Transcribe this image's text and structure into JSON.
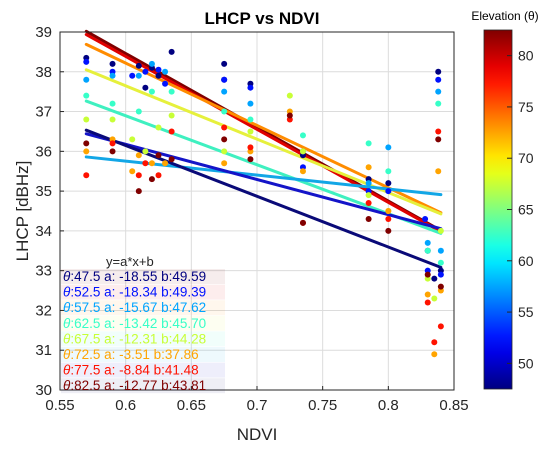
{
  "chart_data": {
    "type": "scatter",
    "title": "LHCP vs NDVI",
    "xlabel": "NDVI",
    "ylabel": "LHCP [dBHz]",
    "xlim": [
      0.55,
      0.85
    ],
    "ylim": [
      30,
      39
    ],
    "xticks": [
      "0.55",
      "0.6",
      "0.65",
      "0.7",
      "0.75",
      "0.8",
      "0.85"
    ],
    "yticks": [
      "30",
      "31",
      "32",
      "33",
      "34",
      "35",
      "36",
      "37",
      "38",
      "39"
    ],
    "grid": true,
    "colorbar": {
      "title": "Elevation (θ)",
      "range": [
        47.5,
        82.5
      ],
      "ticks": [
        "50",
        "55",
        "60",
        "65",
        "70",
        "75",
        "80"
      ],
      "colormap": "jet",
      "placement": "right"
    },
    "equation_label": "y=a*x+b",
    "fits": [
      {
        "theta": "47.5",
        "a": "-18.55",
        "b": "49.59",
        "color": "#800000"
      },
      {
        "theta": "52.5",
        "a": "-18.34",
        "b": "49.39",
        "color": "#e00000"
      },
      {
        "theta": "57.5",
        "a": "-15.67",
        "b": "47.62",
        "color": "#ff8c00"
      },
      {
        "theta": "62.5",
        "a": "-13.42",
        "b": "45.70",
        "color": "#e6f03c"
      },
      {
        "theta": "67.5",
        "a": "-12.31",
        "b": "44.28",
        "color": "#3ff0c0"
      },
      {
        "theta": "72.5",
        "a": "-3.51",
        "b": "37.86",
        "color": "#12a6e6"
      },
      {
        "theta": "77.5",
        "a": "-8.84",
        "b": "41.48",
        "color": "#1414c8"
      },
      {
        "theta": "82.5",
        "a": "-12.77",
        "b": "43.81",
        "color": "#0a0a78"
      }
    ],
    "series": [
      {
        "theta": 47.5,
        "points": [
          [
            0.57,
            38.35
          ],
          [
            0.59,
            38.2
          ],
          [
            0.61,
            38.15
          ],
          [
            0.615,
            37.6
          ],
          [
            0.62,
            38.1
          ],
          [
            0.625,
            37.9
          ],
          [
            0.635,
            38.5
          ],
          [
            0.675,
            38.2
          ],
          [
            0.675,
            37.8
          ],
          [
            0.695,
            37.7
          ],
          [
            0.735,
            35.9
          ],
          [
            0.785,
            35.3
          ],
          [
            0.8,
            35.2
          ],
          [
            0.83,
            33.5
          ],
          [
            0.835,
            32.8
          ],
          [
            0.838,
            38.0
          ],
          [
            0.84,
            33.0
          ]
        ]
      },
      {
        "theta": 52.5,
        "points": [
          [
            0.57,
            38.25
          ],
          [
            0.59,
            38.0
          ],
          [
            0.605,
            37.9
          ],
          [
            0.615,
            38.0
          ],
          [
            0.625,
            38.05
          ],
          [
            0.63,
            37.7
          ],
          [
            0.675,
            37.8
          ],
          [
            0.695,
            37.6
          ],
          [
            0.735,
            35.6
          ],
          [
            0.785,
            35.0
          ],
          [
            0.8,
            35.0
          ],
          [
            0.828,
            34.3
          ],
          [
            0.83,
            33.0
          ],
          [
            0.838,
            37.8
          ],
          [
            0.84,
            32.9
          ]
        ]
      },
      {
        "theta": 57.5,
        "points": [
          [
            0.57,
            37.8
          ],
          [
            0.59,
            37.9
          ],
          [
            0.61,
            37.9
          ],
          [
            0.62,
            38.2
          ],
          [
            0.63,
            38.0
          ],
          [
            0.675,
            37.5
          ],
          [
            0.695,
            37.2
          ],
          [
            0.735,
            36.0
          ],
          [
            0.785,
            35.2
          ],
          [
            0.8,
            36.1
          ],
          [
            0.83,
            33.7
          ],
          [
            0.838,
            37.5
          ],
          [
            0.84,
            33.5
          ]
        ]
      },
      {
        "theta": 62.5,
        "points": [
          [
            0.57,
            37.4
          ],
          [
            0.59,
            37.2
          ],
          [
            0.61,
            37.0
          ],
          [
            0.62,
            37.5
          ],
          [
            0.635,
            37.5
          ],
          [
            0.675,
            37.0
          ],
          [
            0.695,
            36.8
          ],
          [
            0.735,
            36.4
          ],
          [
            0.785,
            36.2
          ],
          [
            0.8,
            35.5
          ],
          [
            0.83,
            33.5
          ],
          [
            0.838,
            37.2
          ],
          [
            0.84,
            33.2
          ]
        ]
      },
      {
        "theta": 67.5,
        "points": [
          [
            0.57,
            36.8
          ],
          [
            0.59,
            36.8
          ],
          [
            0.605,
            36.3
          ],
          [
            0.615,
            36.0
          ],
          [
            0.625,
            36.6
          ],
          [
            0.635,
            36.9
          ],
          [
            0.675,
            36.0
          ],
          [
            0.695,
            36.5
          ],
          [
            0.725,
            37.4
          ],
          [
            0.735,
            36.0
          ],
          [
            0.785,
            34.9
          ],
          [
            0.8,
            34.5
          ],
          [
            0.83,
            32.8
          ],
          [
            0.835,
            32.3
          ],
          [
            0.84,
            34.0
          ]
        ]
      },
      {
        "theta": 72.5,
        "points": [
          [
            0.57,
            36.0
          ],
          [
            0.59,
            36.3
          ],
          [
            0.605,
            35.5
          ],
          [
            0.61,
            35.9
          ],
          [
            0.62,
            35.7
          ],
          [
            0.63,
            35.7
          ],
          [
            0.675,
            35.7
          ],
          [
            0.695,
            36.0
          ],
          [
            0.725,
            37.0
          ],
          [
            0.735,
            35.5
          ],
          [
            0.785,
            35.6
          ],
          [
            0.8,
            34.5
          ],
          [
            0.83,
            32.4
          ],
          [
            0.835,
            30.9
          ],
          [
            0.838,
            35.5
          ],
          [
            0.84,
            32.5
          ]
        ]
      },
      {
        "theta": 77.5,
        "points": [
          [
            0.57,
            35.4
          ],
          [
            0.59,
            36.2
          ],
          [
            0.61,
            35.4
          ],
          [
            0.615,
            35.7
          ],
          [
            0.625,
            35.4
          ],
          [
            0.635,
            36.5
          ],
          [
            0.675,
            36.6
          ],
          [
            0.695,
            36.1
          ],
          [
            0.725,
            36.8
          ],
          [
            0.735,
            34.2
          ],
          [
            0.785,
            34.7
          ],
          [
            0.8,
            34.3
          ],
          [
            0.83,
            32.2
          ],
          [
            0.835,
            31.2
          ],
          [
            0.838,
            36.5
          ],
          [
            0.84,
            31.6
          ]
        ]
      },
      {
        "theta": 82.5,
        "points": [
          [
            0.57,
            36.2
          ],
          [
            0.59,
            36.0
          ],
          [
            0.61,
            35.0
          ],
          [
            0.62,
            35.3
          ],
          [
            0.625,
            35.9
          ],
          [
            0.635,
            35.8
          ],
          [
            0.675,
            36.3
          ],
          [
            0.695,
            35.8
          ],
          [
            0.725,
            36.9
          ],
          [
            0.735,
            34.2
          ],
          [
            0.785,
            34.3
          ],
          [
            0.8,
            34.0
          ],
          [
            0.83,
            32.9
          ],
          [
            0.838,
            36.3
          ],
          [
            0.84,
            32.6
          ]
        ]
      }
    ]
  }
}
